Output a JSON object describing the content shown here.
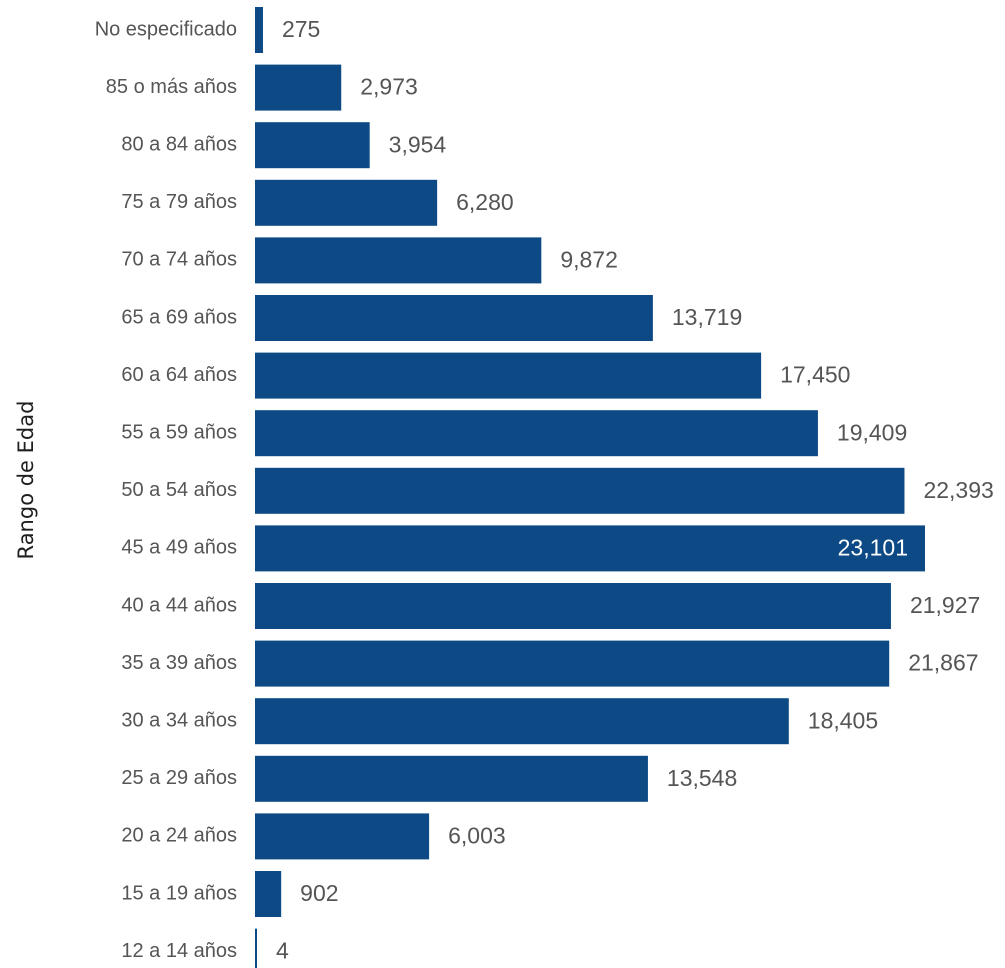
{
  "chart_data": {
    "type": "bar",
    "orientation": "horizontal",
    "ylabel": "Rango de Edad",
    "xlabel": "",
    "categories": [
      "No especificado",
      "85 o más años",
      "80 a 84 años",
      "75 a 79 años",
      "70 a 74 años",
      "65 a 69 años",
      "60 a 64 años",
      "55 a 59 años",
      "50 a 54 años",
      "45 a 49 años",
      "40 a 44 años",
      "35 a 39 años",
      "30 a 34 años",
      "25 a 29 años",
      "20 a 24 años",
      "15 a 19 años",
      "12 a 14 años"
    ],
    "values": [
      275,
      2973,
      3954,
      6280,
      9872,
      13719,
      17450,
      19409,
      22393,
      23101,
      21927,
      21867,
      18405,
      13548,
      6003,
      902,
      4
    ],
    "value_labels": [
      "275",
      "2,973",
      "3,954",
      "6,280",
      "9,872",
      "13,719",
      "17,450",
      "19,409",
      "22,393",
      "23,101",
      "21,927",
      "21,867",
      "18,405",
      "13,548",
      "6,003",
      "902",
      "4"
    ],
    "xlim": [
      0,
      23101
    ],
    "grid": false,
    "legend": "none",
    "bar_color": "#0d4a85"
  }
}
